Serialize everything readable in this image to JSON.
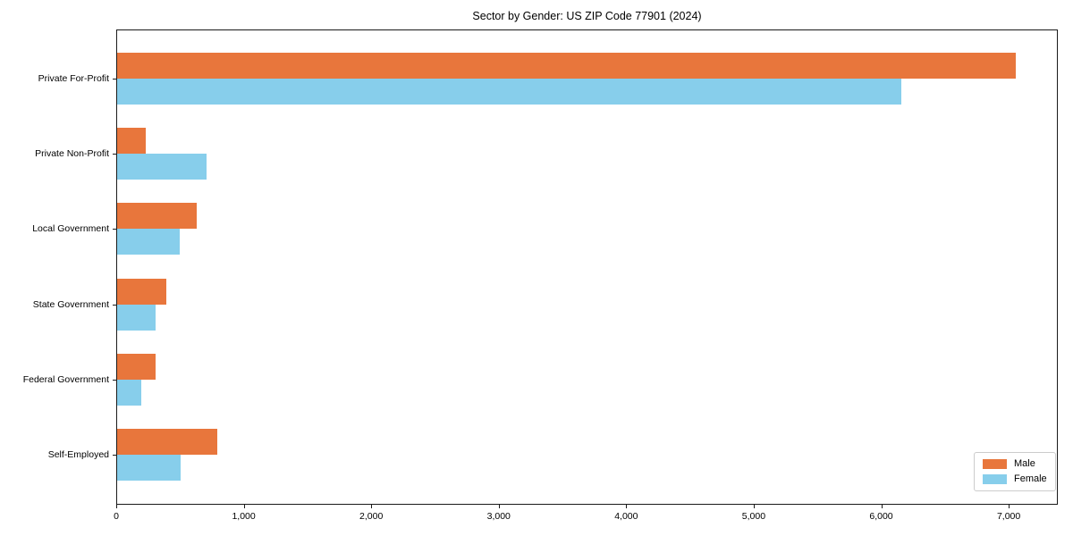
{
  "title": "Sector by Gender: US ZIP Code 77901 (2024)",
  "chart_data": {
    "type": "bar",
    "orientation": "horizontal",
    "title": "Sector by Gender: US ZIP Code 77901 (2024)",
    "categories": [
      "Private For-Profit",
      "Private Non-Profit",
      "Local Government",
      "State Government",
      "Federal Government",
      "Self-Employed"
    ],
    "series": [
      {
        "name": "Male",
        "color": "#e8763c",
        "values": [
          7050,
          225,
          625,
          385,
          300,
          785
        ]
      },
      {
        "name": "Female",
        "color": "#87ceeb",
        "values": [
          6150,
          700,
          490,
          305,
          190,
          495
        ]
      }
    ],
    "xlabel": "",
    "ylabel": "",
    "xlim": [
      0,
      7385
    ],
    "x_ticks": [
      0,
      1000,
      2000,
      3000,
      4000,
      5000,
      6000,
      7000
    ],
    "x_tick_labels": [
      "0",
      "1,000",
      "2,000",
      "3,000",
      "4,000",
      "5,000",
      "6,000",
      "7,000"
    ],
    "grid": false,
    "legend": {
      "position": "lower right",
      "entries": [
        "Male",
        "Female"
      ]
    }
  }
}
